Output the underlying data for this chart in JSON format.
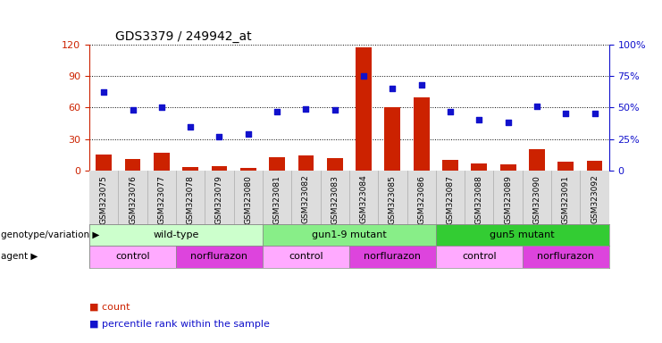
{
  "title": "GDS3379 / 249942_at",
  "samples": [
    "GSM323075",
    "GSM323076",
    "GSM323077",
    "GSM323078",
    "GSM323079",
    "GSM323080",
    "GSM323081",
    "GSM323082",
    "GSM323083",
    "GSM323084",
    "GSM323085",
    "GSM323086",
    "GSM323087",
    "GSM323088",
    "GSM323089",
    "GSM323090",
    "GSM323091",
    "GSM323092"
  ],
  "counts": [
    15,
    11,
    17,
    3,
    4,
    2,
    13,
    14,
    12,
    117,
    60,
    70,
    10,
    7,
    6,
    20,
    8,
    9
  ],
  "percentile_ranks": [
    62,
    48,
    50,
    35,
    27,
    29,
    47,
    49,
    48,
    75,
    65,
    68,
    47,
    40,
    38,
    51,
    45,
    45
  ],
  "left_ylim": [
    0,
    120
  ],
  "right_ylim": [
    0,
    100
  ],
  "left_yticks": [
    0,
    30,
    60,
    90,
    120
  ],
  "right_yticks": [
    0,
    25,
    50,
    75,
    100
  ],
  "right_yticklabels": [
    "0",
    "25%",
    "50%",
    "75%",
    "100%"
  ],
  "bar_color": "#cc2200",
  "dot_color": "#1111cc",
  "background_color": "#ffffff",
  "left_tick_color": "#cc2200",
  "right_tick_color": "#1111cc",
  "xtick_bg_color": "#dddddd",
  "genotype_groups": [
    {
      "label": "wild-type",
      "start": 0,
      "end": 5,
      "color": "#ccffcc"
    },
    {
      "label": "gun1-9 mutant",
      "start": 6,
      "end": 11,
      "color": "#88ee88"
    },
    {
      "label": "gun5 mutant",
      "start": 12,
      "end": 17,
      "color": "#33cc33"
    }
  ],
  "agent_groups": [
    {
      "label": "control",
      "start": 0,
      "end": 2,
      "color": "#ffaaff"
    },
    {
      "label": "norflurazon",
      "start": 3,
      "end": 5,
      "color": "#dd44dd"
    },
    {
      "label": "control",
      "start": 6,
      "end": 8,
      "color": "#ffaaff"
    },
    {
      "label": "norflurazon",
      "start": 9,
      "end": 11,
      "color": "#dd44dd"
    },
    {
      "label": "control",
      "start": 12,
      "end": 14,
      "color": "#ffaaff"
    },
    {
      "label": "norflurazon",
      "start": 15,
      "end": 17,
      "color": "#dd44dd"
    }
  ],
  "genotype_label": "genotype/variation",
  "agent_label": "agent",
  "legend_count_label": "count",
  "legend_percentile_label": "percentile rank within the sample"
}
